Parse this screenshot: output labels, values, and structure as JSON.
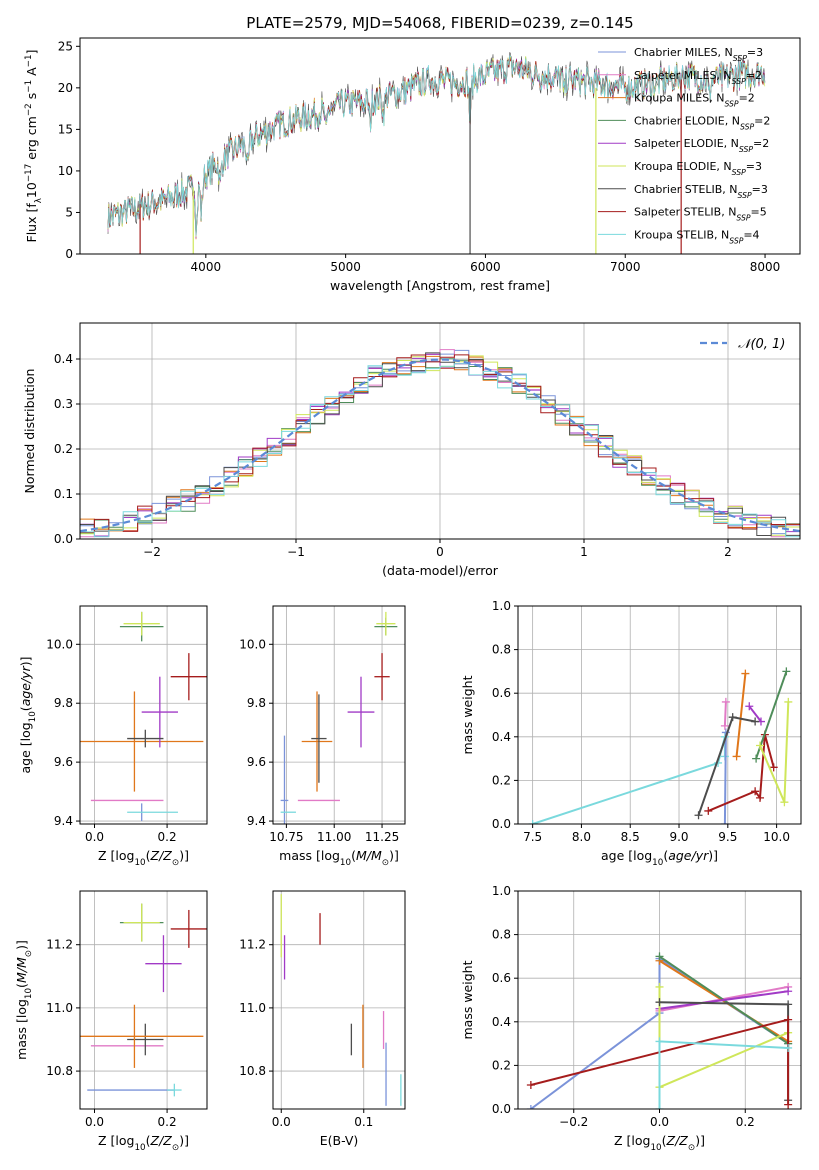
{
  "title": "PLATE=2579, MJD=54068, FIBERID=0239, z=0.145",
  "colors": {
    "chabrier_miles": "#7b93d9",
    "salpeter_miles": "#e17ac6",
    "kroupa_miles": "#e0771b",
    "chabrier_elodie": "#4f8d5a",
    "salpeter_elodie": "#a13ac6",
    "kroupa_elodie": "#cfe65a",
    "chabrier_stelib": "#4d4d4d",
    "salpeter_stelib": "#a51c1c",
    "kroupa_stelib": "#7ad9dd",
    "normal_curve": "#5b8ad6"
  },
  "chart_data": [
    {
      "type": "line",
      "title": "PLATE=2579, MJD=54068, FIBERID=0239, z=0.145",
      "xlabel": "wavelength [Angstrom, rest frame]",
      "ylabel": "Flux [fλ10⁻¹⁷ erg cm⁻² s⁻¹ A⁻¹]",
      "xlim": [
        3100,
        8250
      ],
      "ylim": [
        0,
        26
      ],
      "xticks": [
        "4000",
        "5000",
        "6000",
        "7000",
        "8000"
      ],
      "yticks": [
        "0",
        "5",
        "10",
        "15",
        "20",
        "25"
      ],
      "grid": false,
      "legend_position": "top-right",
      "continuum": {
        "x": [
          3300,
          3500,
          3700,
          3850,
          3950,
          4050,
          4200,
          4400,
          4600,
          4800,
          5000,
          5200,
          5400,
          5600,
          5800,
          6000,
          6200,
          6400,
          6600,
          6800,
          7000,
          7200,
          7400,
          7600,
          7800,
          8000
        ],
        "y": [
          4.5,
          5.5,
          6.5,
          7.5,
          8.5,
          10.5,
          12.5,
          14.5,
          16,
          17,
          18,
          18.5,
          19.5,
          21,
          20.5,
          21.5,
          22.5,
          21.5,
          21,
          20.5,
          20,
          20.5,
          21.5,
          21,
          21.5,
          22
        ]
      },
      "series": [
        {
          "name": "Chabrier MILES, NSSP=3"
        },
        {
          "name": "Salpeter MILES, NSSP=2"
        },
        {
          "name": "Kroupa MILES, NSSP=2"
        },
        {
          "name": "Chabrier ELODIE, NSSP=2"
        },
        {
          "name": "Salpeter ELODIE, NSSP=2"
        },
        {
          "name": "Kroupa ELODIE, NSSP=3"
        },
        {
          "name": "Chabrier STELIB, NSSP=3"
        },
        {
          "name": "Salpeter STELIB, NSSP=5"
        },
        {
          "name": "Kroupa STELIB, NSSP=4"
        }
      ]
    },
    {
      "type": "line",
      "xlabel": "(data-model)/error",
      "ylabel": "Normed distribution",
      "xlim": [
        -2.5,
        2.5
      ],
      "ylim": [
        0,
        0.48
      ],
      "xticks": [
        "−2",
        "−1",
        "0",
        "1",
        "2"
      ],
      "yticks": [
        "0.0",
        "0.1",
        "0.2",
        "0.3",
        "0.4"
      ],
      "grid": true,
      "legend_position": "top-right",
      "normal_curve_label": "𝒩(0, 1)",
      "histograms": "step histograms of the nine model fits, bin width 0.1, following the standard normal curve"
    },
    {
      "type": "scatter",
      "xlabel": "Z [log10(Z/Z⊙)]",
      "ylabel": "age  [log10(age/yr)]",
      "xlim": [
        -0.04,
        0.31
      ],
      "ylim": [
        9.39,
        10.13
      ],
      "xticks": [
        "0.0",
        "0.2"
      ],
      "yticks": [
        "9.4",
        "9.6",
        "9.8",
        "10.0"
      ],
      "grid": true,
      "points": [
        {
          "model": "chabrier_miles",
          "x": 0.13,
          "y": 9.43,
          "xerr": 0.0,
          "yerr": 0.03
        },
        {
          "model": "salpeter_miles",
          "x": 0.09,
          "y": 9.47,
          "xerr": 0.1,
          "yerr": 0.0
        },
        {
          "model": "kroupa_miles",
          "x": 0.11,
          "y": 9.67,
          "xerr": 0.19,
          "yerr": 0.17
        },
        {
          "model": "chabrier_elodie",
          "x": 0.13,
          "y": 10.06,
          "xerr": 0.06,
          "yerr": 0.05
        },
        {
          "model": "salpeter_elodie",
          "x": 0.18,
          "y": 9.77,
          "xerr": 0.05,
          "yerr": 0.12
        },
        {
          "model": "kroupa_elodie",
          "x": 0.13,
          "y": 10.07,
          "xerr": 0.05,
          "yerr": 0.04
        },
        {
          "model": "chabrier_stelib",
          "x": 0.14,
          "y": 9.68,
          "xerr": 0.05,
          "yerr": 0.03
        },
        {
          "model": "salpeter_stelib",
          "x": 0.26,
          "y": 9.89,
          "xerr": 0.05,
          "yerr": 0.08
        },
        {
          "model": "kroupa_stelib",
          "x": 0.16,
          "y": 9.43,
          "xerr": 0.07,
          "yerr": 0.0
        }
      ]
    },
    {
      "type": "scatter",
      "xlabel": "mass [log10(M/M⊙)]",
      "ylabel": "",
      "xlim": [
        10.68,
        11.37
      ],
      "ylim": [
        9.39,
        10.13
      ],
      "xticks": [
        "10.75",
        "11.00",
        "11.25"
      ],
      "yticks": [
        "9.4",
        "9.6",
        "9.8",
        "10.0"
      ],
      "grid": true,
      "points": [
        {
          "model": "chabrier_miles",
          "x": 10.74,
          "y": 9.47,
          "xerr": 0.02,
          "yerr": 0.22
        },
        {
          "model": "kroupa_stelib",
          "x": 10.76,
          "y": 9.43,
          "xerr": 0.04,
          "yerr": 0.0
        },
        {
          "model": "salpeter_miles",
          "x": 10.92,
          "y": 9.47,
          "xerr": 0.11,
          "yerr": 0.0
        },
        {
          "model": "kroupa_miles",
          "x": 10.91,
          "y": 9.67,
          "xerr": 0.08,
          "yerr": 0.17
        },
        {
          "model": "chabrier_stelib",
          "x": 10.92,
          "y": 9.68,
          "xerr": 0.04,
          "yerr": 0.15
        },
        {
          "model": "salpeter_elodie",
          "x": 11.14,
          "y": 9.77,
          "xerr": 0.07,
          "yerr": 0.12
        },
        {
          "model": "salpeter_stelib",
          "x": 11.25,
          "y": 9.89,
          "xerr": 0.04,
          "yerr": 0.08
        },
        {
          "model": "chabrier_elodie",
          "x": 11.27,
          "y": 10.06,
          "xerr": 0.06,
          "yerr": 0.03
        },
        {
          "model": "kroupa_elodie",
          "x": 11.27,
          "y": 10.07,
          "xerr": 0.05,
          "yerr": 0.04
        }
      ]
    },
    {
      "type": "line",
      "xlabel": "age  [log10(age/yr)]",
      "ylabel": "mass weight",
      "xlim": [
        7.35,
        10.25
      ],
      "ylim": [
        0,
        1
      ],
      "xticks": [
        "7.5",
        "8.0",
        "8.5",
        "9.0",
        "9.5",
        "10.0"
      ],
      "yticks": [
        "0.0",
        "0.2",
        "0.4",
        "0.6",
        "0.8",
        "1.0"
      ],
      "grid": true,
      "series": [
        {
          "model": "kroupa_stelib",
          "points": [
            [
              7.5,
              0.0
            ],
            [
              9.4,
              0.28
            ],
            [
              9.47,
              0.4
            ],
            [
              9.47,
              0.31
            ]
          ]
        },
        {
          "model": "chabrier_miles",
          "points": [
            [
              9.47,
              0.0
            ],
            [
              9.48,
              0.42
            ]
          ]
        },
        {
          "model": "salpeter_miles",
          "points": [
            [
              9.47,
              0.45
            ],
            [
              9.48,
              0.56
            ]
          ]
        },
        {
          "model": "kroupa_miles",
          "points": [
            [
              9.59,
              0.31
            ],
            [
              9.68,
              0.69
            ]
          ]
        },
        {
          "model": "salpeter_elodie",
          "points": [
            [
              9.72,
              0.54
            ],
            [
              9.84,
              0.47
            ]
          ]
        },
        {
          "model": "chabrier_stelib",
          "points": [
            [
              9.2,
              0.04
            ],
            [
              9.55,
              0.49
            ],
            [
              9.78,
              0.47
            ]
          ]
        },
        {
          "model": "salpeter_stelib",
          "points": [
            [
              9.3,
              0.06
            ],
            [
              9.78,
              0.15
            ],
            [
              9.83,
              0.12
            ],
            [
              9.88,
              0.41
            ],
            [
              9.97,
              0.26
            ]
          ]
        },
        {
          "model": "chabrier_elodie",
          "points": [
            [
              9.79,
              0.3
            ],
            [
              10.1,
              0.7
            ]
          ]
        },
        {
          "model": "kroupa_elodie",
          "points": [
            [
              9.83,
              0.36
            ],
            [
              10.08,
              0.1
            ],
            [
              10.12,
              0.56
            ]
          ]
        }
      ]
    },
    {
      "type": "scatter",
      "xlabel": "Z [log10(Z/Z⊙)]",
      "ylabel": "mass [log10(M/M⊙)]",
      "xlim": [
        -0.04,
        0.31
      ],
      "ylim": [
        10.68,
        11.37
      ],
      "xticks": [
        "0.0",
        "0.2"
      ],
      "yticks": [
        "10.8",
        "11.0",
        "11.2"
      ],
      "grid": true,
      "points": [
        {
          "model": "chabrier_miles",
          "x": 0.1,
          "y": 10.74,
          "xerr": 0.12,
          "yerr": 0.0
        },
        {
          "model": "kroupa_stelib",
          "x": 0.22,
          "y": 10.74,
          "xerr": 0.02,
          "yerr": 0.02
        },
        {
          "model": "salpeter_miles",
          "x": 0.09,
          "y": 10.88,
          "xerr": 0.1,
          "yerr": 0.0
        },
        {
          "model": "chabrier_stelib",
          "x": 0.14,
          "y": 10.9,
          "xerr": 0.05,
          "yerr": 0.05
        },
        {
          "model": "kroupa_miles",
          "x": 0.11,
          "y": 10.91,
          "xerr": 0.19,
          "yerr": 0.1
        },
        {
          "model": "salpeter_elodie",
          "x": 0.19,
          "y": 11.14,
          "xerr": 0.05,
          "yerr": 0.09
        },
        {
          "model": "salpeter_stelib",
          "x": 0.26,
          "y": 11.25,
          "xerr": 0.05,
          "yerr": 0.06
        },
        {
          "model": "chabrier_elodie",
          "x": 0.13,
          "y": 11.27,
          "xerr": 0.06,
          "yerr": 0.06
        },
        {
          "model": "kroupa_elodie",
          "x": 0.13,
          "y": 11.27,
          "xerr": 0.05,
          "yerr": 0.06
        }
      ]
    },
    {
      "type": "scatter",
      "xlabel": "E(B-V)",
      "ylabel": "",
      "xlim": [
        -0.01,
        0.15
      ],
      "ylim": [
        10.68,
        11.37
      ],
      "xticks": [
        "0.0",
        "0.1"
      ],
      "yticks": [
        "10.8",
        "11.0",
        "11.2"
      ],
      "grid": true,
      "points": [
        {
          "model": "kroupa_elodie",
          "x": 0.0,
          "y": 11.26,
          "xerr": 0.0,
          "yerr": 0.1
        },
        {
          "model": "salpeter_elodie",
          "x": 0.004,
          "y": 11.16,
          "xerr": 0.0,
          "yerr": 0.07
        },
        {
          "model": "salpeter_stelib",
          "x": 0.047,
          "y": 11.25,
          "xerr": 0.0,
          "yerr": 0.05
        },
        {
          "model": "chabrier_stelib",
          "x": 0.085,
          "y": 10.9,
          "xerr": 0.0,
          "yerr": 0.05
        },
        {
          "model": "kroupa_miles",
          "x": 0.099,
          "y": 10.91,
          "xerr": 0.0,
          "yerr": 0.1
        },
        {
          "model": "salpeter_miles",
          "x": 0.124,
          "y": 10.93,
          "xerr": 0.0,
          "yerr": 0.06
        },
        {
          "model": "chabrier_miles",
          "x": 0.127,
          "y": 10.79,
          "xerr": 0.0,
          "yerr": 0.1
        },
        {
          "model": "kroupa_stelib",
          "x": 0.145,
          "y": 10.74,
          "xerr": 0.0,
          "yerr": 0.05
        }
      ]
    },
    {
      "type": "line",
      "xlabel": "Z [log10(Z/Z⊙)]",
      "ylabel": "mass weight",
      "xlim": [
        -0.33,
        0.33
      ],
      "ylim": [
        0,
        1
      ],
      "xticks": [
        "−0.2",
        "0.0",
        "0.2"
      ],
      "yticks": [
        "0.0",
        "0.2",
        "0.4",
        "0.6",
        "0.8",
        "1.0"
      ],
      "grid": true,
      "series": [
        {
          "model": "chabrier_miles",
          "points": [
            [
              -0.3,
              0.0
            ],
            [
              0.0,
              0.44
            ],
            [
              0.0,
              0.69
            ],
            [
              0.3,
              0.3
            ]
          ]
        },
        {
          "model": "salpeter_miles",
          "points": [
            [
              0.0,
              0.45
            ],
            [
              0.3,
              0.56
            ]
          ]
        },
        {
          "model": "kroupa_miles",
          "points": [
            [
              0.0,
              0.68
            ],
            [
              0.3,
              0.31
            ]
          ]
        },
        {
          "model": "chabrier_elodie",
          "points": [
            [
              0.0,
              0.7
            ],
            [
              0.3,
              0.3
            ]
          ]
        },
        {
          "model": "salpeter_elodie",
          "points": [
            [
              0.0,
              0.46
            ],
            [
              0.3,
              0.54
            ]
          ]
        },
        {
          "model": "kroupa_elodie",
          "points": [
            [
              0.0,
              0.56
            ],
            [
              0.0,
              0.1
            ],
            [
              0.3,
              0.35
            ]
          ]
        },
        {
          "model": "chabrier_stelib",
          "points": [
            [
              0.0,
              0.49
            ],
            [
              0.3,
              0.48
            ],
            [
              0.3,
              0.04
            ]
          ]
        },
        {
          "model": "salpeter_stelib",
          "points": [
            [
              -0.3,
              0.11
            ],
            [
              0.3,
              0.41
            ],
            [
              0.3,
              0.02
            ]
          ]
        },
        {
          "model": "kroupa_stelib",
          "points": [
            [
              0.0,
              0.0
            ],
            [
              0.0,
              0.31
            ],
            [
              0.3,
              0.28
            ]
          ]
        }
      ]
    }
  ]
}
